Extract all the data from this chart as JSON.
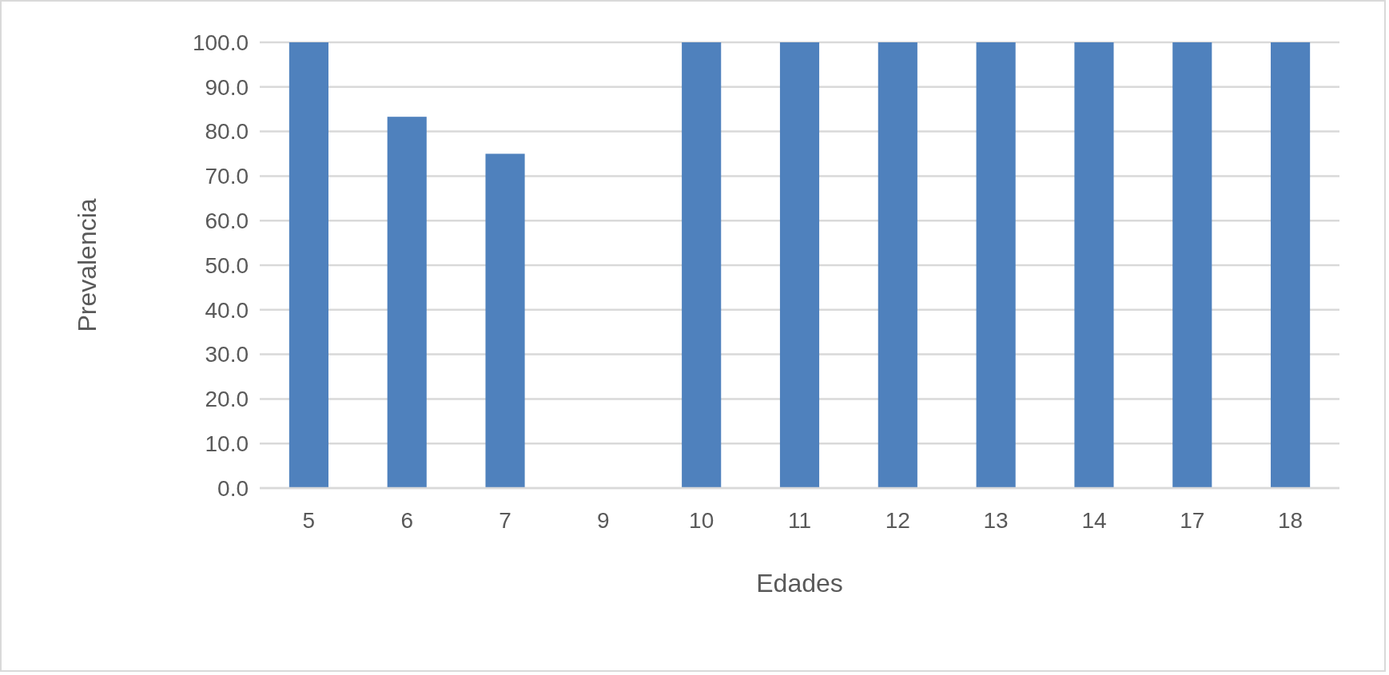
{
  "chart_data": {
    "type": "bar",
    "xlabel": "Edades",
    "ylabel": "Prevalencia",
    "categories": [
      "5",
      "6",
      "7",
      "9",
      "10",
      "11",
      "12",
      "13",
      "14",
      "17",
      "18"
    ],
    "values": [
      100,
      83.3,
      75,
      0,
      100,
      100,
      100,
      100,
      100,
      100,
      100
    ],
    "color": "#4f81bd",
    "ylim": [
      0,
      100
    ],
    "yticks": [
      {
        "value": 0,
        "label": "0.0"
      },
      {
        "value": 10,
        "label": "10.0"
      },
      {
        "value": 20,
        "label": "20.0"
      },
      {
        "value": 30,
        "label": "30.0"
      },
      {
        "value": 40,
        "label": "40.0"
      },
      {
        "value": 50,
        "label": "50.0"
      },
      {
        "value": 60,
        "label": "60.0"
      },
      {
        "value": 70,
        "label": "70.0"
      },
      {
        "value": 80,
        "label": "80.0"
      },
      {
        "value": 90,
        "label": "90.0"
      },
      {
        "value": 100,
        "label": "100.0"
      }
    ],
    "grid": "y"
  }
}
